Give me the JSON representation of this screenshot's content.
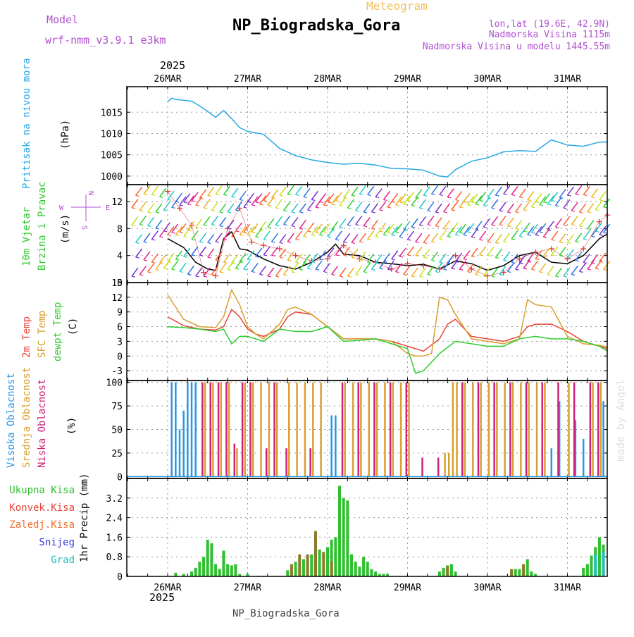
{
  "header": {
    "model_label": "Model",
    "model_value": "wrf-nmm_v3.9.1 e3km",
    "meteogram_label": "Meteogram",
    "title": "NP_Biogradska_Gora",
    "lonlat": "lon,lat (19.6E, 42.9N)",
    "altitude": "Nadmorska Visina 1115m",
    "model_altitude": "Nadmorska Visina u modelu 1445.55m",
    "bottom_title": "NP_Biogradska_Gora",
    "watermark": "made by Angel",
    "year_top": "2025",
    "year_bottom": "2025"
  },
  "colors": {
    "pressure": "#29a9e6",
    "wind_mean": "#000000",
    "gust": "#e03a3a",
    "t2m": "#e8443a",
    "tsfc": "#d8a030",
    "dewpt": "#2ecc2e",
    "cloud_high": "#2a96e0",
    "cloud_mid": "#d8a030",
    "cloud_low": "#d0207a",
    "precip_total": "#2ec02e",
    "precip_conv": "#8a7a2a",
    "precip_snow": "#3a3ae0",
    "precip_grad": "#20c0c0",
    "accent_purple": "#b04fd0"
  },
  "chart_data": [
    {
      "type": "line",
      "panel": "pressure",
      "ylabel": "Pritisak na nivou mora",
      "unit": "(hPa)",
      "ylim": [
        998,
        1021
      ],
      "yticks": [
        1000,
        1005,
        1010,
        1015
      ],
      "x_days": [
        "26MAR",
        "27MAR",
        "28MAR",
        "29MAR",
        "30MAR",
        "31MAR"
      ],
      "series": [
        {
          "name": "MSLP",
          "x": [
            0,
            0.05,
            0.1,
            0.2,
            0.3,
            0.4,
            0.5,
            0.6,
            0.7,
            0.8,
            0.9,
            1.0,
            1.2,
            1.4,
            1.6,
            1.8,
            2.0,
            2.2,
            2.4,
            2.6,
            2.8,
            3.0,
            3.2,
            3.4,
            3.5,
            3.6,
            3.8,
            4.0,
            4.2,
            4.4,
            4.6,
            4.8,
            5.0,
            5.2,
            5.4,
            5.5
          ],
          "values": [
            1017.5,
            1018.3,
            1018.0,
            1017.8,
            1017.6,
            1016.5,
            1015.2,
            1013.8,
            1015.4,
            1013.5,
            1011.4,
            1010.5,
            1009.8,
            1006.5,
            1004.8,
            1003.8,
            1003.2,
            1002.8,
            1003.0,
            1002.6,
            1001.8,
            1001.7,
            1001.4,
            1000.0,
            999.8,
            1001.5,
            1003.5,
            1004.3,
            1005.7,
            1006.0,
            1005.8,
            1008.5,
            1007.3,
            1007.0,
            1008.0,
            1008.0
          ]
        }
      ]
    },
    {
      "type": "line",
      "panel": "wind",
      "ylabel": "10m Vjetar",
      "ylabel2": "Brzina i Pravac",
      "unit": "(m/s)",
      "compass": [
        "N",
        "E",
        "S",
        "W"
      ],
      "ylim": [
        0,
        14.5
      ],
      "yticks": [
        0,
        4,
        8,
        12
      ],
      "x_days": [
        "26MAR",
        "27MAR",
        "28MAR",
        "29MAR",
        "30MAR",
        "31MAR"
      ],
      "series": [
        {
          "name": "Mean wind",
          "x": [
            0,
            0.2,
            0.35,
            0.5,
            0.6,
            0.7,
            0.8,
            0.9,
            1.0,
            1.2,
            1.4,
            1.6,
            1.8,
            2.0,
            2.1,
            2.2,
            2.4,
            2.6,
            2.8,
            3.0,
            3.2,
            3.4,
            3.6,
            3.8,
            4.0,
            4.2,
            4.4,
            4.6,
            4.8,
            5.0,
            5.2,
            5.4,
            5.5
          ],
          "values": [
            6.5,
            5.2,
            3.0,
            2.0,
            1.8,
            6.5,
            7.5,
            5.0,
            4.8,
            3.5,
            2.5,
            2.0,
            3.0,
            4.5,
            5.7,
            4.2,
            4.0,
            3.0,
            2.8,
            2.5,
            2.7,
            2.0,
            3.2,
            2.8,
            1.8,
            2.5,
            4.0,
            4.5,
            3.0,
            2.8,
            4.0,
            6.5,
            7.2
          ]
        },
        {
          "name": "Gust",
          "x": [
            0,
            0.15,
            0.3,
            0.45,
            0.6,
            0.75,
            0.9,
            1.05,
            1.2,
            1.4,
            1.6,
            1.8,
            2.0,
            2.2,
            2.4,
            2.6,
            2.8,
            3.0,
            3.2,
            3.4,
            3.6,
            3.8,
            4.0,
            4.2,
            4.4,
            4.6,
            4.8,
            5.0,
            5.2,
            5.4,
            5.5
          ],
          "values": [
            13.5,
            11.0,
            8.5,
            1.5,
            1.0,
            8.0,
            11.0,
            6.0,
            5.5,
            5.0,
            4.0,
            3.2,
            3.5,
            5.5,
            3.5,
            3.0,
            2.0,
            2.8,
            2.5,
            2.0,
            4.0,
            2.0,
            1.0,
            1.5,
            3.5,
            4.5,
            5.0,
            3.5,
            5.0,
            9.0,
            10.0
          ]
        }
      ]
    },
    {
      "type": "line",
      "panel": "temperature",
      "ylabels": [
        "2m Temp",
        "SFC Temp",
        "dewpt Temp"
      ],
      "unit": "(C)",
      "ylim": [
        -5,
        15
      ],
      "yticks": [
        -3,
        0,
        3,
        6,
        9,
        12,
        15
      ],
      "x_days": [
        "26MAR",
        "27MAR",
        "28MAR",
        "29MAR",
        "30MAR",
        "31MAR"
      ],
      "series": [
        {
          "name": "2m Temp",
          "x": [
            0,
            0.2,
            0.4,
            0.6,
            0.7,
            0.8,
            0.9,
            1.0,
            1.1,
            1.2,
            1.4,
            1.5,
            1.6,
            1.8,
            2.0,
            2.2,
            2.4,
            2.6,
            2.8,
            3.0,
            3.2,
            3.4,
            3.5,
            3.6,
            3.8,
            4.0,
            4.2,
            4.4,
            4.5,
            4.6,
            4.8,
            5.0,
            5.2,
            5.4,
            5.5
          ],
          "values": [
            8.0,
            6.2,
            5.5,
            5.3,
            6.0,
            9.5,
            8.0,
            5.5,
            4.5,
            4.0,
            5.5,
            8.0,
            9.0,
            8.5,
            6.0,
            3.5,
            3.5,
            3.5,
            3.0,
            2.0,
            1.0,
            3.5,
            6.5,
            7.5,
            4.0,
            3.5,
            3.0,
            4.0,
            6.0,
            6.5,
            6.5,
            5.0,
            3.0,
            2.0,
            1.5
          ]
        },
        {
          "name": "SFC Temp",
          "x": [
            0,
            0.2,
            0.4,
            0.6,
            0.7,
            0.8,
            0.9,
            1.0,
            1.1,
            1.2,
            1.4,
            1.5,
            1.6,
            1.8,
            2.0,
            2.2,
            2.4,
            2.6,
            2.8,
            3.0,
            3.1,
            3.2,
            3.3,
            3.4,
            3.5,
            3.6,
            3.8,
            4.0,
            4.2,
            4.4,
            4.5,
            4.6,
            4.8,
            5.0,
            5.2,
            5.4,
            5.5
          ],
          "values": [
            12.5,
            7.5,
            6.0,
            5.8,
            8.0,
            13.5,
            10.5,
            6.0,
            4.5,
            3.5,
            6.5,
            9.5,
            10.0,
            8.5,
            6.0,
            3.5,
            3.5,
            3.5,
            3.0,
            0.5,
            0.0,
            0.0,
            0.5,
            12.0,
            11.5,
            8.5,
            3.5,
            3.0,
            2.5,
            3.5,
            11.5,
            10.5,
            10.0,
            4.0,
            2.5,
            2.2,
            1.8
          ]
        },
        {
          "name": "dewpt Temp",
          "x": [
            0,
            0.2,
            0.4,
            0.6,
            0.7,
            0.8,
            0.9,
            1.0,
            1.1,
            1.2,
            1.4,
            1.6,
            1.8,
            2.0,
            2.2,
            2.4,
            2.6,
            2.8,
            3.0,
            3.1,
            3.2,
            3.4,
            3.6,
            3.8,
            4.0,
            4.2,
            4.4,
            4.6,
            4.8,
            5.0,
            5.2,
            5.4,
            5.5
          ],
          "values": [
            6.0,
            5.8,
            5.5,
            5.0,
            5.5,
            2.5,
            4.0,
            4.0,
            3.5,
            3.0,
            5.5,
            5.0,
            5.0,
            6.0,
            3.0,
            3.2,
            3.5,
            2.5,
            1.5,
            -3.5,
            -3.0,
            0.5,
            3.0,
            2.5,
            2.0,
            2.0,
            3.5,
            4.0,
            3.5,
            3.5,
            3.0,
            2.0,
            1.0
          ]
        }
      ]
    },
    {
      "type": "bar",
      "panel": "clouds",
      "ylabels": [
        "Visoka Oblacnost",
        "Srednja Oblacnost",
        "Niska Oblacnost"
      ],
      "unit": "(%)",
      "ylim": [
        -2,
        102
      ],
      "yticks": [
        0,
        25,
        50,
        75,
        100
      ],
      "x_days": [
        "26MAR",
        "27MAR",
        "28MAR",
        "29MAR",
        "30MAR",
        "31MAR"
      ],
      "series": [
        {
          "name": "Visoka Oblacnost",
          "x": [
            0.05,
            0.1,
            0.15,
            0.2,
            0.25,
            0.3,
            0.35,
            2.05,
            2.1,
            4.8,
            4.9,
            5.1,
            5.2,
            5.45
          ],
          "values": [
            100,
            100,
            50,
            70,
            100,
            100,
            100,
            65,
            65,
            30,
            80,
            60,
            40,
            80
          ]
        },
        {
          "name": "Srednja Oblacnost",
          "x": [
            0.45,
            0.55,
            0.65,
            0.75,
            0.85,
            0.95,
            1.05,
            1.15,
            1.25,
            1.35,
            1.5,
            1.6,
            1.7,
            1.8,
            1.9,
            2.2,
            2.3,
            2.4,
            2.5,
            2.6,
            2.7,
            2.8,
            2.9,
            3.0,
            3.45,
            3.5,
            3.55,
            3.6,
            3.7,
            3.8,
            3.9,
            4.0,
            4.1,
            4.2,
            4.3,
            4.4,
            4.5,
            4.6,
            4.7,
            5.0,
            5.3,
            5.4
          ],
          "values": [
            100,
            100,
            100,
            100,
            30,
            100,
            100,
            100,
            100,
            100,
            100,
            100,
            100,
            100,
            100,
            100,
            100,
            100,
            100,
            100,
            100,
            100,
            100,
            100,
            25,
            25,
            100,
            100,
            100,
            100,
            100,
            100,
            100,
            100,
            100,
            100,
            100,
            100,
            100,
            100,
            100,
            100
          ]
        },
        {
          "name": "Niska Oblacnost",
          "x": [
            0.4,
            0.5,
            0.6,
            0.7,
            0.8,
            0.9,
            1.0,
            1.2,
            1.3,
            1.45,
            1.75,
            2.15,
            2.35,
            2.55,
            2.75,
            2.95,
            3.15,
            3.35,
            3.65,
            3.85,
            4.05,
            4.25,
            4.45,
            4.65,
            4.85,
            5.05,
            5.25,
            5.35,
            5.5
          ],
          "values": [
            100,
            100,
            100,
            100,
            35,
            100,
            100,
            30,
            100,
            30,
            30,
            100,
            100,
            100,
            100,
            100,
            20,
            20,
            100,
            100,
            100,
            100,
            100,
            100,
            100,
            100,
            100,
            100,
            100
          ]
        }
      ]
    },
    {
      "type": "bar",
      "panel": "precip",
      "ylabels": [
        "Ukupna Kisa",
        "Konvek.Kisa",
        "Zaledj.Kisa",
        "Snijeg",
        "Grad"
      ],
      "unit": "1hr Precip (mm)",
      "ylim": [
        0,
        4.0
      ],
      "yticks": [
        0,
        0.8,
        1.6,
        2.4,
        3.2
      ],
      "x_days": [
        "26MAR",
        "27MAR",
        "28MAR",
        "29MAR",
        "30MAR",
        "31MAR"
      ],
      "series": [
        {
          "name": "Ukupna Kisa",
          "x": [
            0.1,
            0.2,
            0.3,
            0.35,
            0.4,
            0.45,
            0.5,
            0.55,
            0.6,
            0.65,
            0.7,
            0.75,
            0.8,
            0.85,
            0.9,
            1.0,
            1.5,
            1.6,
            1.7,
            1.8,
            1.9,
            2.0,
            2.05,
            2.1,
            2.15,
            2.2,
            2.25,
            2.3,
            2.35,
            2.4,
            2.45,
            2.5,
            2.55,
            2.6,
            2.65,
            2.7,
            2.75,
            3.4,
            3.45,
            3.5,
            3.55,
            3.6,
            4.35,
            4.4,
            4.45,
            4.5,
            4.55,
            4.6,
            5.2,
            5.25,
            5.3,
            5.35,
            5.4,
            5.45,
            5.5
          ],
          "values": [
            0.15,
            0.1,
            0.2,
            0.35,
            0.6,
            0.8,
            1.5,
            1.35,
            0.5,
            0.3,
            1.05,
            0.5,
            0.45,
            0.5,
            0.1,
            0.1,
            0.25,
            0.6,
            0.7,
            0.9,
            1.1,
            1.2,
            1.5,
            1.6,
            3.7,
            3.2,
            3.1,
            0.9,
            0.6,
            0.4,
            0.8,
            0.6,
            0.3,
            0.2,
            0.1,
            0.1,
            0.1,
            0.2,
            0.35,
            0.45,
            0.5,
            0.2,
            0.3,
            0.3,
            0.45,
            0.7,
            0.2,
            0.1,
            0.35,
            0.5,
            0.85,
            1.2,
            1.6,
            1.3,
            1.0
          ]
        },
        {
          "name": "Konvek.Kisa",
          "x": [
            1.55,
            1.65,
            1.75,
            1.85,
            1.95,
            2.05,
            3.5,
            4.3,
            4.45
          ],
          "values": [
            0.5,
            0.9,
            0.9,
            1.85,
            1.0,
            0.6,
            0.4,
            0.3,
            0.5
          ]
        },
        {
          "name": "Grad",
          "x": [
            5.35,
            5.45
          ],
          "values": [
            0.9,
            1.0
          ]
        }
      ]
    }
  ]
}
